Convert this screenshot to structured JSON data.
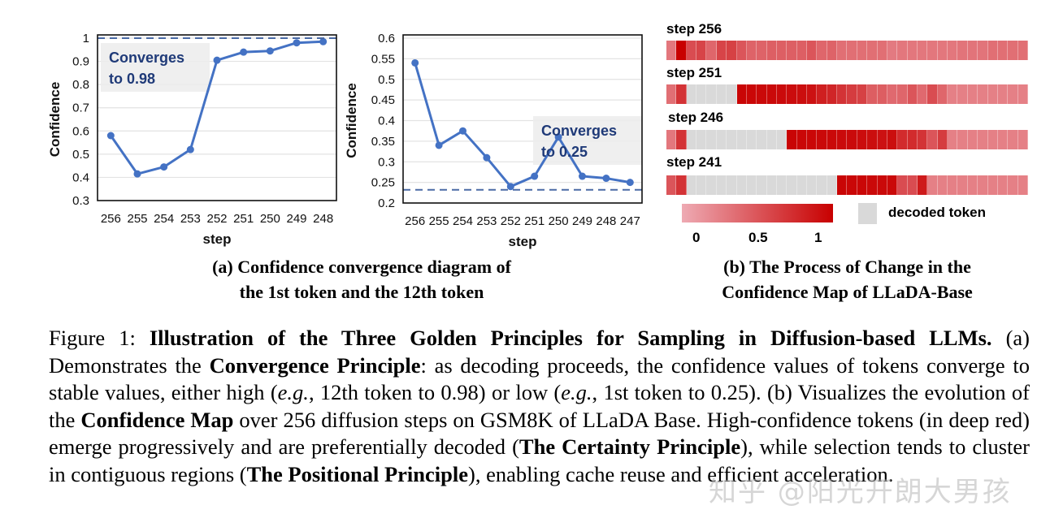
{
  "chart_data": [
    {
      "type": "line",
      "title": "Confidence convergence of the 12th token",
      "xlabel": "step",
      "ylabel": "Confidence",
      "categories": [
        "256",
        "255",
        "254",
        "253",
        "252",
        "251",
        "250",
        "249",
        "248"
      ],
      "series": [
        {
          "name": "12th token",
          "values": [
            0.58,
            0.415,
            0.445,
            0.52,
            0.905,
            0.94,
            0.945,
            0.98,
            0.985
          ]
        }
      ],
      "yticks": [
        "0.3",
        "0.4",
        "0.5",
        "0.6",
        "0.7",
        "0.8",
        "0.9",
        "1"
      ],
      "ylim": [
        0.3,
        1.0
      ],
      "reference_line": {
        "value": 1.0,
        "style": "dashed"
      },
      "annotation": {
        "line1": "Converges",
        "line2": "to 0.98"
      },
      "grid": true,
      "color": "#4472c4"
    },
    {
      "type": "line",
      "title": "Confidence convergence of the 1st token",
      "xlabel": "step",
      "ylabel": "Confidence",
      "categories": [
        "256",
        "255",
        "254",
        "253",
        "252",
        "251",
        "250",
        "249",
        "248",
        "247"
      ],
      "series": [
        {
          "name": "1st token",
          "values": [
            0.54,
            0.34,
            0.375,
            0.31,
            0.24,
            0.265,
            0.36,
            0.265,
            0.26,
            0.25
          ]
        }
      ],
      "yticks": [
        "0.2",
        "0.25",
        "0.3",
        "0.35",
        "0.4",
        "0.45",
        "0.5",
        "0.55",
        "0.6"
      ],
      "ylim": [
        0.2,
        0.6
      ],
      "reference_line": {
        "value": 0.232,
        "style": "dashed"
      },
      "annotation": {
        "line1": "Converges",
        "line2": "to 0.25"
      },
      "grid": true,
      "color": "#4472c4"
    },
    {
      "type": "heatmap",
      "title": "Confidence Map of LLaDA-Base",
      "rows": [
        {
          "label": "step 256",
          "values": [
            0.3,
            1.0,
            0.55,
            0.6,
            0.4,
            0.6,
            0.62,
            0.5,
            0.42,
            0.42,
            0.44,
            0.44,
            0.44,
            0.44,
            0.5,
            0.4,
            0.42,
            0.35,
            0.35,
            0.35,
            0.35,
            0.35,
            0.28,
            0.3,
            0.3,
            0.3,
            0.3,
            0.3,
            0.3,
            0.32,
            0.32,
            0.32,
            0.35,
            0.35,
            0.35,
            0.35
          ]
        },
        {
          "label": "step 251",
          "values": [
            0.35,
            0.7,
            null,
            null,
            null,
            null,
            null,
            0.97,
            0.96,
            0.95,
            0.95,
            0.94,
            0.93,
            0.92,
            0.9,
            0.82,
            0.78,
            0.7,
            0.65,
            0.62,
            0.45,
            0.45,
            0.38,
            0.4,
            0.5,
            0.38,
            0.55,
            0.4,
            0.25,
            0.25,
            0.25,
            0.25,
            0.25,
            0.25,
            0.25,
            0.25
          ]
        },
        {
          "label": "step 246",
          "values": [
            0.3,
            0.7,
            null,
            null,
            null,
            null,
            null,
            null,
            null,
            null,
            null,
            null,
            0.97,
            0.96,
            0.96,
            0.95,
            0.95,
            0.94,
            0.94,
            0.93,
            0.92,
            0.9,
            0.92,
            0.75,
            0.75,
            0.7,
            0.5,
            0.65,
            0.25,
            0.25,
            0.25,
            0.25,
            0.25,
            0.25,
            0.25,
            0.25
          ]
        },
        {
          "label": "step 241",
          "values": [
            0.5,
            0.7,
            null,
            null,
            null,
            null,
            null,
            null,
            null,
            null,
            null,
            null,
            null,
            null,
            null,
            null,
            null,
            0.97,
            0.96,
            0.96,
            0.95,
            0.95,
            0.95,
            0.55,
            0.55,
            0.85,
            0.25,
            0.25,
            0.25,
            0.25,
            0.25,
            0.25,
            0.25,
            0.25,
            0.25,
            0.25
          ]
        }
      ],
      "null_meaning": "decoded token",
      "colorscale": {
        "min_color": "#eeaab3",
        "max_color": "#c80000",
        "decoded_color": "#d9d9d9",
        "ticks": [
          "0",
          "0.5",
          "1"
        ]
      },
      "legend_decoded_label": "decoded token"
    }
  ],
  "subcaptions": {
    "a_line1": "(a) Confidence convergence diagram of",
    "a_line2": "the 1st token and the 12th token",
    "b_line1": "(b) The Process of Change in the",
    "b_line2": "Confidence Map of LLaDA-Base"
  },
  "caption": {
    "p1": "Figure 1: ",
    "b1": "Illustration of the Three Golden Principles for Sampling in Diffusion-based LLMs.",
    "p2": " (a) Demonstrates the ",
    "b2": "Convergence Principle",
    "p3": ": as decoding proceeds, the confidence values of tokens converge to stable values, either high (",
    "i1": "e.g.",
    "p4": ", 12th token to 0.98) or low (",
    "i2": "e.g.",
    "p5": ", 1st token to 0.25). (b) Visualizes the evolution of the ",
    "b3": "Confidence Map",
    "p6": " over 256 diffusion steps on GSM8K of LLaDA Base.  High-confidence tokens (in deep red) emerge progressively and are preferentially decoded (",
    "b4": "The Certainty Principle",
    "p7": "), while selection tends to cluster in contiguous regions (",
    "b5": "The Positional Principle",
    "p8": "), enabling cache reuse and efficient acceleration."
  },
  "watermark": "知乎 @阳光开朗大男孩"
}
